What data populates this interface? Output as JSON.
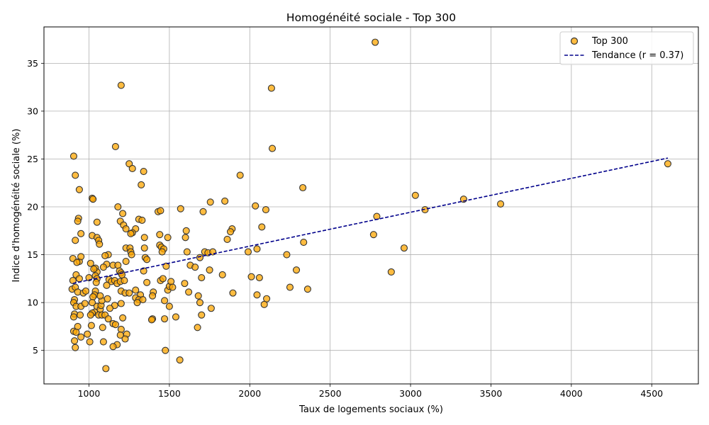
{
  "chart_data": {
    "type": "scatter",
    "title": "Homogénéité sociale - Top 300",
    "xlabel": "Taux de logements sociaux (%)",
    "ylabel": "Indice d'homogénéité sociale (%)",
    "xlim": [
      720,
      4790
    ],
    "ylim": [
      1.5,
      38.8
    ],
    "xticks": [
      1000,
      1500,
      2000,
      2500,
      3000,
      3500,
      4000,
      4500
    ],
    "yticks": [
      5,
      10,
      15,
      20,
      25,
      30,
      35
    ],
    "grid": true,
    "legend_position": "top-right",
    "colors": {
      "points": "#ffa500",
      "point_edge": "#333333",
      "trend": "#00008b"
    },
    "series": [
      {
        "name": "Top 300",
        "kind": "scatter",
        "points": [
          [
            905,
            25.3
          ],
          [
            915,
            23.3
          ],
          [
            940,
            21.8
          ],
          [
            1020,
            20.9
          ],
          [
            1025,
            20.8
          ],
          [
            935,
            18.8
          ],
          [
            930,
            18.5
          ],
          [
            1050,
            18.4
          ],
          [
            950,
            17.2
          ],
          [
            1020,
            17.0
          ],
          [
            1050,
            16.8
          ],
          [
            1060,
            16.5
          ],
          [
            1065,
            16.1
          ],
          [
            915,
            16.5
          ],
          [
            900,
            14.6
          ],
          [
            940,
            14.3
          ],
          [
            950,
            14.8
          ],
          [
            925,
            14.2
          ],
          [
            1010,
            14.1
          ],
          [
            1040,
            13.6
          ],
          [
            1050,
            13.2
          ],
          [
            1030,
            13.5
          ],
          [
            920,
            12.9
          ],
          [
            940,
            12.5
          ],
          [
            900,
            12.3
          ],
          [
            1000,
            12.6
          ],
          [
            1040,
            12.8
          ],
          [
            1050,
            12.5
          ],
          [
            1045,
            12.1
          ],
          [
            895,
            11.4
          ],
          [
            915,
            11.6
          ],
          [
            930,
            11.1
          ],
          [
            965,
            11.0
          ],
          [
            980,
            11.2
          ],
          [
            1040,
            11.2
          ],
          [
            1035,
            10.8
          ],
          [
            1025,
            10.6
          ],
          [
            910,
            10.3
          ],
          [
            905,
            10.0
          ],
          [
            920,
            9.6
          ],
          [
            950,
            9.6
          ],
          [
            975,
            9.9
          ],
          [
            1020,
            10.0
          ],
          [
            1050,
            9.6
          ],
          [
            1070,
            9.3
          ],
          [
            1075,
            9.7
          ],
          [
            1080,
            10.2
          ],
          [
            1070,
            10.7
          ],
          [
            1035,
            9.0
          ],
          [
            1020,
            8.9
          ],
          [
            1010,
            8.7
          ],
          [
            910,
            8.8
          ],
          [
            905,
            8.5
          ],
          [
            930,
            7.5
          ],
          [
            945,
            8.7
          ],
          [
            1060,
            8.7
          ],
          [
            1080,
            8.7
          ],
          [
            1015,
            7.6
          ],
          [
            905,
            7.0
          ],
          [
            920,
            6.9
          ],
          [
            950,
            6.4
          ],
          [
            990,
            6.7
          ],
          [
            1005,
            5.9
          ],
          [
            910,
            6.0
          ],
          [
            915,
            5.3
          ],
          [
            1090,
            5.9
          ],
          [
            1085,
            7.4
          ],
          [
            1105,
            3.1
          ],
          [
            1165,
            26.3
          ],
          [
            1200,
            32.7
          ],
          [
            1250,
            24.5
          ],
          [
            1270,
            24.0
          ],
          [
            1340,
            23.7
          ],
          [
            1325,
            22.3
          ],
          [
            1180,
            20.0
          ],
          [
            1210,
            19.3
          ],
          [
            1195,
            18.5
          ],
          [
            1215,
            18.1
          ],
          [
            1230,
            17.7
          ],
          [
            1290,
            17.7
          ],
          [
            1270,
            17.3
          ],
          [
            1260,
            17.2
          ],
          [
            1310,
            18.7
          ],
          [
            1330,
            18.6
          ],
          [
            1345,
            16.8
          ],
          [
            1430,
            19.5
          ],
          [
            1445,
            19.6
          ],
          [
            1440,
            17.1
          ],
          [
            1230,
            15.7
          ],
          [
            1255,
            15.7
          ],
          [
            1260,
            15.3
          ],
          [
            1265,
            15.0
          ],
          [
            1345,
            15.7
          ],
          [
            1230,
            14.3
          ],
          [
            1350,
            14.7
          ],
          [
            1360,
            14.5
          ],
          [
            1440,
            16.0
          ],
          [
            1450,
            15.8
          ],
          [
            1465,
            15.6
          ],
          [
            1455,
            15.3
          ],
          [
            1490,
            16.8
          ],
          [
            1150,
            13.9
          ],
          [
            1120,
            15.0
          ],
          [
            1100,
            14.9
          ],
          [
            1110,
            14.0
          ],
          [
            1090,
            13.7
          ],
          [
            1180,
            13.9
          ],
          [
            1190,
            13.3
          ],
          [
            1200,
            13.1
          ],
          [
            1205,
            12.9
          ],
          [
            1125,
            12.4
          ],
          [
            1140,
            12.2
          ],
          [
            1160,
            12.3
          ],
          [
            1175,
            12.0
          ],
          [
            1195,
            12.2
          ],
          [
            1220,
            12.3
          ],
          [
            1340,
            13.3
          ],
          [
            1110,
            11.8
          ],
          [
            1200,
            11.2
          ],
          [
            1225,
            11.0
          ],
          [
            1250,
            11.0
          ],
          [
            1290,
            11.3
          ],
          [
            1320,
            10.8
          ],
          [
            1290,
            10.5
          ],
          [
            1310,
            10.3
          ],
          [
            1335,
            10.3
          ],
          [
            1400,
            11.1
          ],
          [
            1395,
            10.7
          ],
          [
            1300,
            10.0
          ],
          [
            1115,
            10.4
          ],
          [
            1160,
            9.7
          ],
          [
            1200,
            9.9
          ],
          [
            1130,
            9.4
          ],
          [
            1100,
            8.7
          ],
          [
            1120,
            8.3
          ],
          [
            1210,
            8.4
          ],
          [
            1360,
            12.1
          ],
          [
            1445,
            12.3
          ],
          [
            1460,
            12.5
          ],
          [
            1480,
            13.8
          ],
          [
            1490,
            11.3
          ],
          [
            1500,
            11.7
          ],
          [
            1510,
            12.2
          ],
          [
            1520,
            11.6
          ],
          [
            1470,
            10.2
          ],
          [
            1500,
            9.6
          ],
          [
            1395,
            8.3
          ],
          [
            1390,
            8.2
          ],
          [
            1470,
            8.3
          ],
          [
            1540,
            8.5
          ],
          [
            1150,
            7.8
          ],
          [
            1165,
            7.7
          ],
          [
            1200,
            7.2
          ],
          [
            1235,
            6.7
          ],
          [
            1225,
            6.2
          ],
          [
            1195,
            6.6
          ],
          [
            1175,
            5.6
          ],
          [
            1150,
            5.4
          ],
          [
            1475,
            5.0
          ],
          [
            1570,
            19.8
          ],
          [
            1605,
            17.5
          ],
          [
            1600,
            16.8
          ],
          [
            1610,
            15.3
          ],
          [
            1690,
            14.7
          ],
          [
            1720,
            15.3
          ],
          [
            1740,
            15.2
          ],
          [
            1770,
            15.3
          ],
          [
            1630,
            13.9
          ],
          [
            1660,
            13.7
          ],
          [
            1750,
            13.4
          ],
          [
            1830,
            12.9
          ],
          [
            1700,
            12.6
          ],
          [
            1595,
            12.0
          ],
          [
            1620,
            11.1
          ],
          [
            1680,
            10.7
          ],
          [
            1690,
            10.0
          ],
          [
            1700,
            8.7
          ],
          [
            1760,
            9.4
          ],
          [
            1675,
            7.4
          ],
          [
            1565,
            4.0
          ],
          [
            1755,
            20.5
          ],
          [
            1710,
            19.5
          ],
          [
            1845,
            20.6
          ],
          [
            1890,
            17.7
          ],
          [
            1880,
            17.4
          ],
          [
            1860,
            16.6
          ],
          [
            1895,
            11.0
          ],
          [
            1940,
            23.3
          ],
          [
            2010,
            12.7
          ],
          [
            1990,
            15.3
          ],
          [
            2035,
            20.1
          ],
          [
            2100,
            19.7
          ],
          [
            2075,
            17.9
          ],
          [
            2045,
            15.6
          ],
          [
            2060,
            12.6
          ],
          [
            2045,
            10.8
          ],
          [
            2105,
            10.4
          ],
          [
            2090,
            9.8
          ],
          [
            2135,
            32.4
          ],
          [
            2140,
            26.1
          ],
          [
            2330,
            22.0
          ],
          [
            2230,
            15.0
          ],
          [
            2335,
            16.3
          ],
          [
            2290,
            13.4
          ],
          [
            2250,
            11.6
          ],
          [
            2360,
            11.4
          ],
          [
            2780,
            37.2
          ],
          [
            2770,
            17.1
          ],
          [
            2790,
            19.0
          ],
          [
            2960,
            15.7
          ],
          [
            2880,
            13.2
          ],
          [
            3030,
            21.2
          ],
          [
            3090,
            19.7
          ],
          [
            3330,
            20.8
          ],
          [
            3560,
            20.3
          ],
          [
            4600,
            24.5
          ]
        ]
      },
      {
        "name": "Tendance (r = 0.37)",
        "kind": "trend",
        "x": [
          900,
          4600
        ],
        "y": [
          12.0,
          25.1
        ]
      }
    ]
  }
}
